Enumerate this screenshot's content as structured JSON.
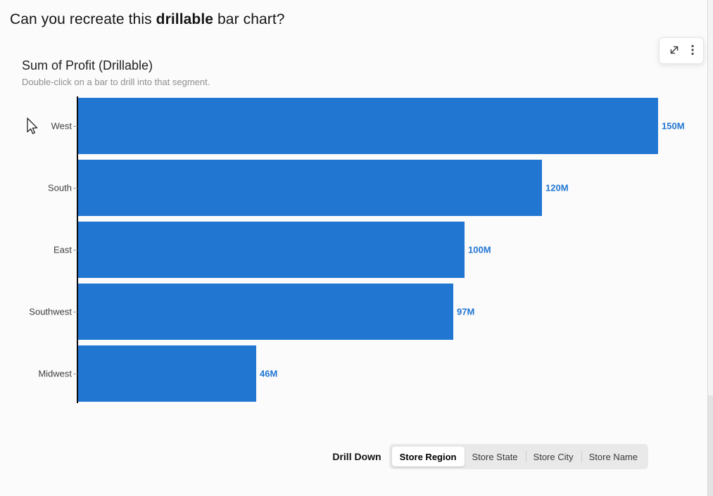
{
  "page": {
    "title_prefix": "Can you recreate this ",
    "title_bold": "drillable",
    "title_suffix": " bar chart?"
  },
  "chart": {
    "title": "Sum of Profit (Drillable)",
    "subtitle": "Double-click on a bar to drill into that segment.",
    "bar_color": "#2176d2",
    "value_label_color": "#2176d2",
    "axis_color": "#0a0a0a"
  },
  "chart_data": {
    "type": "bar",
    "orientation": "horizontal",
    "title": "Sum of Profit (Drillable)",
    "subtitle": "Double-click on a bar to drill into that segment.",
    "categories": [
      "West",
      "South",
      "East",
      "Southwest",
      "Midwest"
    ],
    "values": [
      150,
      120,
      100,
      97,
      46
    ],
    "value_labels": [
      "150M",
      "120M",
      "100M",
      "97M",
      "46M"
    ],
    "value_suffix": "M",
    "xlim": [
      0,
      150
    ],
    "grid": false,
    "legend": false,
    "bar_color": "#2176d2"
  },
  "toolbar": {
    "icons": [
      {
        "name": "expand-icon"
      },
      {
        "name": "kebab-menu-icon"
      }
    ]
  },
  "icons": {
    "expand": "expand-diagonal-arrows-icon",
    "menu": "kebab-vertical-dots-icon",
    "cursor": "mouse-arrow-pointer-icon"
  },
  "drilldown": {
    "label": "Drill Down",
    "options": [
      {
        "label": "Store Region",
        "selected": true
      },
      {
        "label": "Store State",
        "selected": false
      },
      {
        "label": "Store City",
        "selected": false
      },
      {
        "label": "Store Name",
        "selected": false
      }
    ]
  }
}
